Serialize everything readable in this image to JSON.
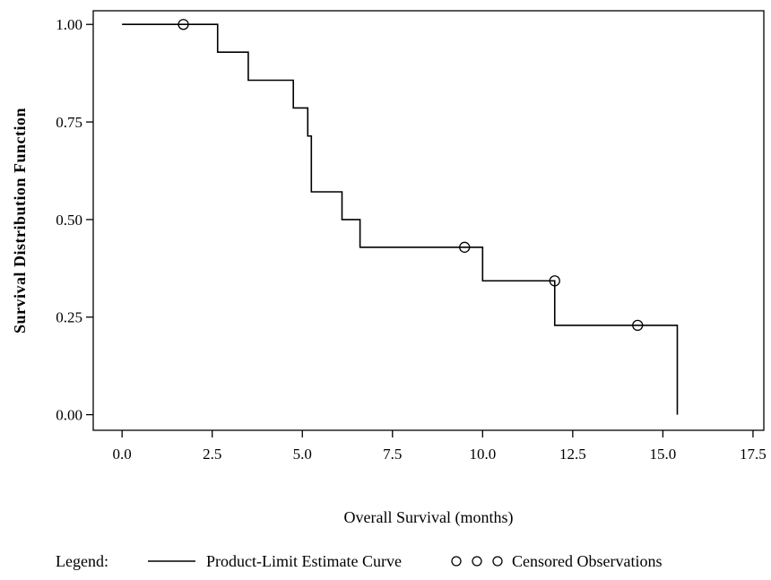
{
  "chart_data": {
    "type": "line",
    "xlabel": "Overall Survival (months)",
    "ylabel": "Survival Distribution Function",
    "xlim": [
      -0.8,
      17.8
    ],
    "ylim": [
      -0.04,
      1.035
    ],
    "xticks": [
      0,
      2.5,
      5,
      7.5,
      10,
      12.5,
      15,
      17.5
    ],
    "xtick_labels": [
      "0.0",
      "2.5",
      "5.0",
      "7.5",
      "10.0",
      "12.5",
      "15.0",
      "17.5"
    ],
    "yticks": [
      0,
      0.25,
      0.5,
      0.75,
      1.0
    ],
    "ytick_labels": [
      "0.00",
      "0.25",
      "0.50",
      "0.75",
      "1.00"
    ],
    "series": [
      {
        "name": "Product-Limit Estimate Curve",
        "style": "step",
        "x": [
          0,
          2.65,
          3.5,
          4.75,
          5.15,
          5.25,
          6.1,
          6.6,
          10.0,
          12.0,
          15.4
        ],
        "y": [
          1.0,
          0.929,
          0.857,
          0.786,
          0.714,
          0.571,
          0.5,
          0.429,
          0.343,
          0.229,
          0.0
        ]
      }
    ],
    "censored": {
      "name": "Censored Observations",
      "x": [
        1.7,
        9.5,
        12.0,
        14.3
      ],
      "y": [
        1.0,
        0.429,
        0.343,
        0.229
      ]
    },
    "legend": {
      "title": "Legend:",
      "placement": "bottom"
    },
    "grid": false
  }
}
